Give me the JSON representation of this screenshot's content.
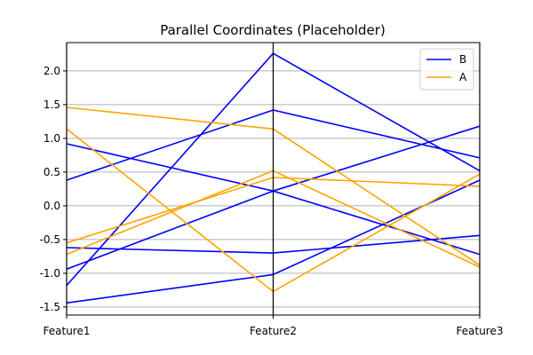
{
  "chart_data": {
    "type": "line",
    "subtype": "parallel-coordinates",
    "title": "Parallel Coordinates (Placeholder)",
    "categories": [
      "Feature1",
      "Feature2",
      "Feature3"
    ],
    "ylim": [
      -1.62,
      2.42
    ],
    "yticks": [
      "-1.5",
      "-1.0",
      "-0.5",
      "0.0",
      "0.5",
      "1.0",
      "1.5",
      "2.0"
    ],
    "grid": true,
    "legend": {
      "position": "top-right"
    },
    "classes": [
      {
        "name": "B",
        "color": "#0000ff"
      },
      {
        "name": "A",
        "color": "#ffa500"
      }
    ],
    "series": [
      {
        "class": "B",
        "values": [
          0.38,
          1.42,
          0.71
        ]
      },
      {
        "class": "B",
        "values": [
          0.92,
          0.22,
          -0.72
        ]
      },
      {
        "class": "B",
        "values": [
          -1.18,
          2.26,
          0.52
        ]
      },
      {
        "class": "B",
        "values": [
          -0.94,
          0.22,
          1.18
        ]
      },
      {
        "class": "B",
        "values": [
          -0.62,
          -0.7,
          -0.44
        ]
      },
      {
        "class": "B",
        "values": [
          -1.44,
          -1.02,
          0.38
        ]
      },
      {
        "class": "A",
        "values": [
          1.46,
          1.14,
          -0.88
        ]
      },
      {
        "class": "A",
        "values": [
          1.14,
          -1.27,
          0.47
        ]
      },
      {
        "class": "A",
        "values": [
          -0.55,
          0.42,
          0.29
        ]
      },
      {
        "class": "A",
        "values": [
          -0.72,
          0.52,
          -0.91
        ]
      }
    ]
  }
}
